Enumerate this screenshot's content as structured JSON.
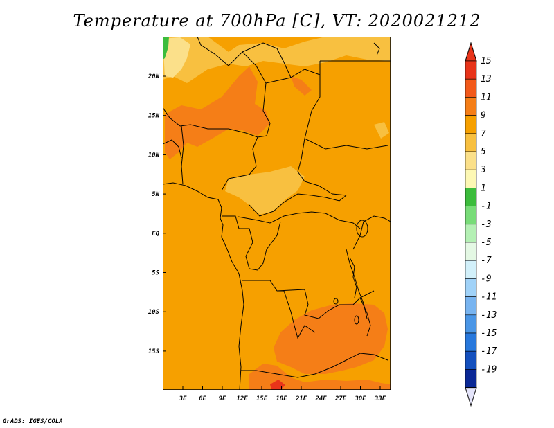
{
  "title": "Temperature at 700hPa [C], VT: 2020021212",
  "credit": "GrADS: IGES/COLA",
  "map": {
    "lon_ticks": [
      "3E",
      "6E",
      "9E",
      "12E",
      "15E",
      "18E",
      "21E",
      "24E",
      "27E",
      "30E",
      "33E"
    ],
    "lat_ticks": [
      "20N",
      "15N",
      "10N",
      "5N",
      "EQ",
      "5S",
      "10S",
      "15S"
    ],
    "background_color": "#f6a000"
  },
  "colorbar": {
    "labels": [
      "15",
      "13",
      "11",
      "9",
      "7",
      "5",
      "3",
      "1",
      "-1",
      "-3",
      "-5",
      "-7",
      "-9",
      "-11",
      "-13",
      "-15",
      "-17",
      "-19"
    ],
    "colors": [
      "#e8341a",
      "#f2591a",
      "#f57e17",
      "#f6a000",
      "#f8c040",
      "#fbe08a",
      "#fdf8b4",
      "#3cbc3c",
      "#78dc78",
      "#b4f0b4",
      "#e4f8e4",
      "#d2f0fa",
      "#a0d2f8",
      "#78b4f0",
      "#4a96e6",
      "#2878dc",
      "#1450be",
      "#0a2896",
      "#000a64"
    ],
    "top_arrow_color": "#e8341a",
    "bottom_arrow_color": "#e4e4fa"
  }
}
